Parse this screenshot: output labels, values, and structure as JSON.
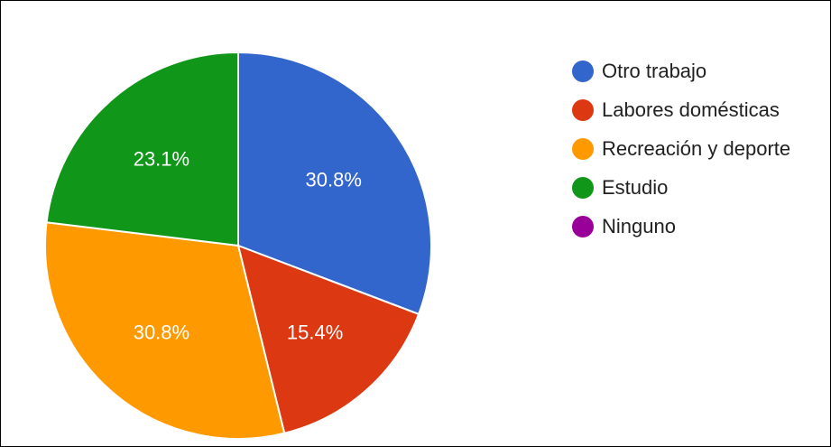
{
  "chart_data": {
    "type": "pie",
    "slices": [
      {
        "label": "Otro trabajo",
        "value": 30.8,
        "display": "30.8%",
        "color": "#3366cc"
      },
      {
        "label": "Labores domésticas",
        "value": 15.4,
        "display": "15.4%",
        "color": "#dc3912"
      },
      {
        "label": "Recreación y deporte",
        "value": 30.8,
        "display": "30.8%",
        "color": "#ff9900"
      },
      {
        "label": "Estudio",
        "value": 23.1,
        "display": "23.1%",
        "color": "#109618"
      },
      {
        "label": "Ninguno",
        "value": 0,
        "display": "",
        "color": "#990099"
      }
    ],
    "start_angle_deg": 90,
    "direction": "clockwise",
    "legend_position": "right"
  }
}
